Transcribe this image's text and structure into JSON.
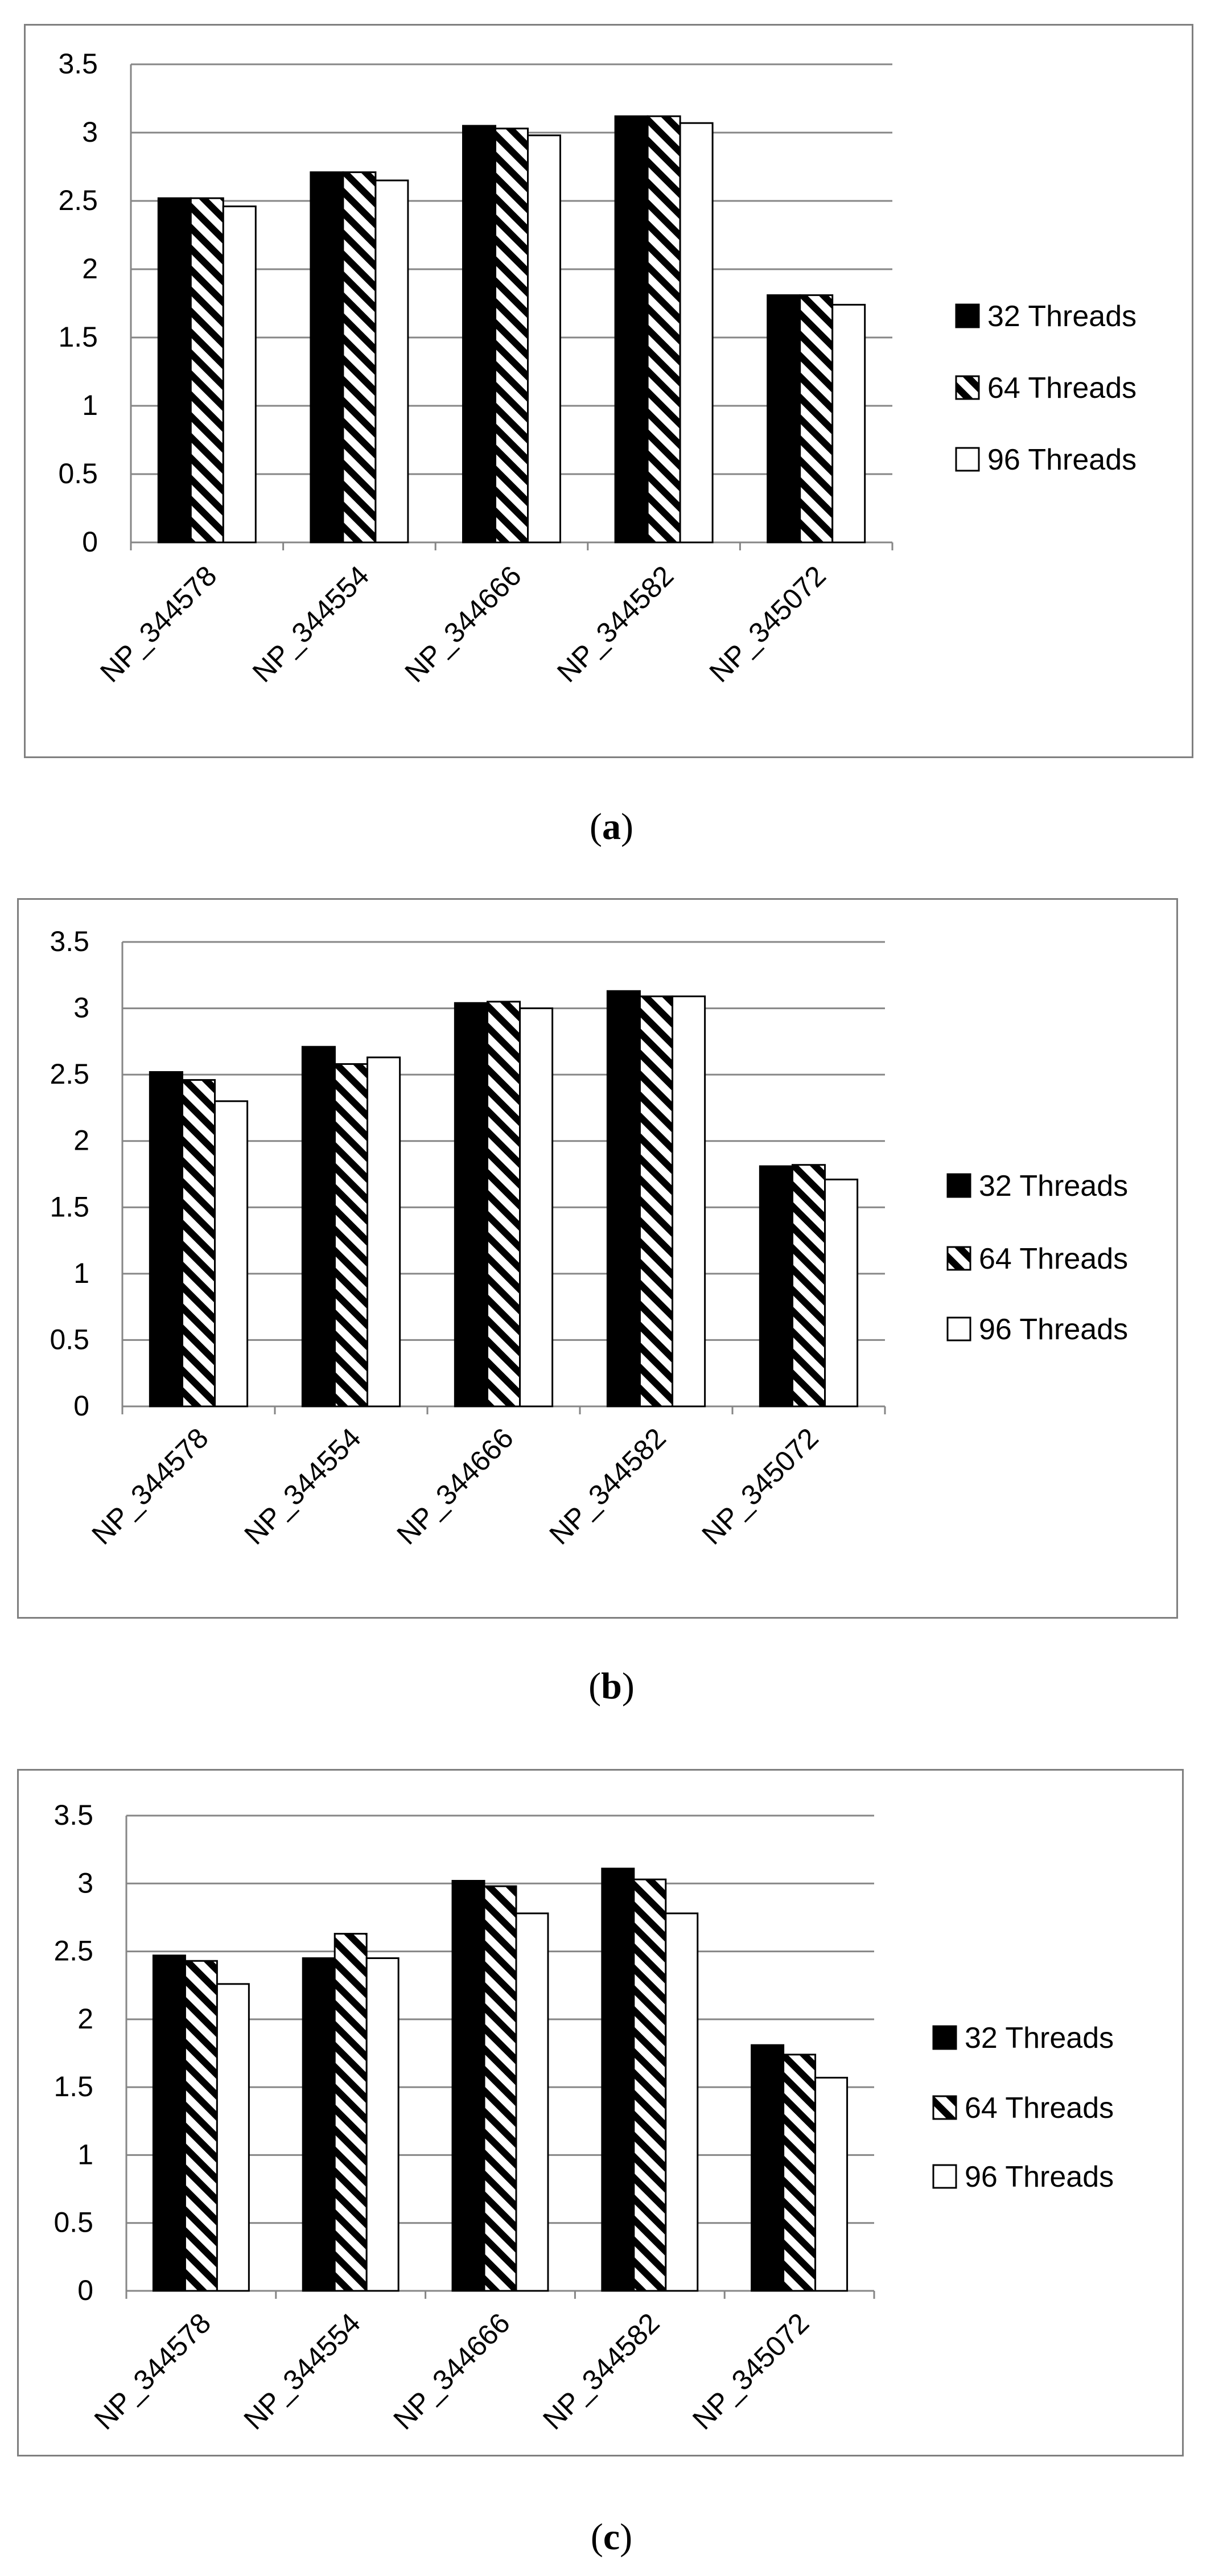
{
  "chart_data": [
    {
      "type": "bar",
      "panel": "a",
      "categories": [
        "NP_344578",
        "NP_344554",
        "NP_344666",
        "NP_344582",
        "NP_345072"
      ],
      "series": [
        {
          "name": "32 Threads",
          "values": [
            2.52,
            2.71,
            3.05,
            3.12,
            1.81
          ]
        },
        {
          "name": "64 Threads",
          "values": [
            2.52,
            2.71,
            3.03,
            3.12,
            1.81
          ]
        },
        {
          "name": "96 Threads",
          "values": [
            2.46,
            2.65,
            2.98,
            3.07,
            1.74
          ]
        }
      ],
      "yticks": [
        "0",
        "0.5",
        "1",
        "1.5",
        "2",
        "2.5",
        "3",
        "3.5"
      ],
      "ylim": [
        0,
        3.5
      ],
      "legend_position": "right",
      "grid": true
    },
    {
      "type": "bar",
      "panel": "b",
      "categories": [
        "NP_344578",
        "NP_344554",
        "NP_344666",
        "NP_344582",
        "NP_345072"
      ],
      "series": [
        {
          "name": "32 Threads",
          "values": [
            2.52,
            2.71,
            3.04,
            3.13,
            1.81
          ]
        },
        {
          "name": "64 Threads",
          "values": [
            2.46,
            2.58,
            3.05,
            3.09,
            1.82
          ]
        },
        {
          "name": "96 Threads",
          "values": [
            2.3,
            2.63,
            3.0,
            3.09,
            1.71
          ]
        }
      ],
      "yticks": [
        "0",
        "0.5",
        "1",
        "1.5",
        "2",
        "2.5",
        "3",
        "3.5"
      ],
      "ylim": [
        0,
        3.5
      ],
      "legend_position": "right",
      "grid": true
    },
    {
      "type": "bar",
      "panel": "c",
      "categories": [
        "NP_344578",
        "NP_344554",
        "NP_344666",
        "NP_344582",
        "NP_345072"
      ],
      "series": [
        {
          "name": "32 Threads",
          "values": [
            2.47,
            2.45,
            3.02,
            3.11,
            1.81
          ]
        },
        {
          "name": "64 Threads",
          "values": [
            2.43,
            2.63,
            2.98,
            3.03,
            1.74
          ]
        },
        {
          "name": "96 Threads",
          "values": [
            2.26,
            2.45,
            2.78,
            2.78,
            1.57
          ]
        }
      ],
      "yticks": [
        "0",
        "0.5",
        "1",
        "1.5",
        "2",
        "2.5",
        "3",
        "3.5"
      ],
      "ylim": [
        0,
        3.5
      ],
      "legend_position": "right",
      "grid": true
    }
  ],
  "captions": [
    "a",
    "b",
    "c"
  ],
  "colors": {
    "frame": "#7f7f7f",
    "grid": "#868686",
    "bar_edge": "#000000",
    "text": "#000000"
  }
}
